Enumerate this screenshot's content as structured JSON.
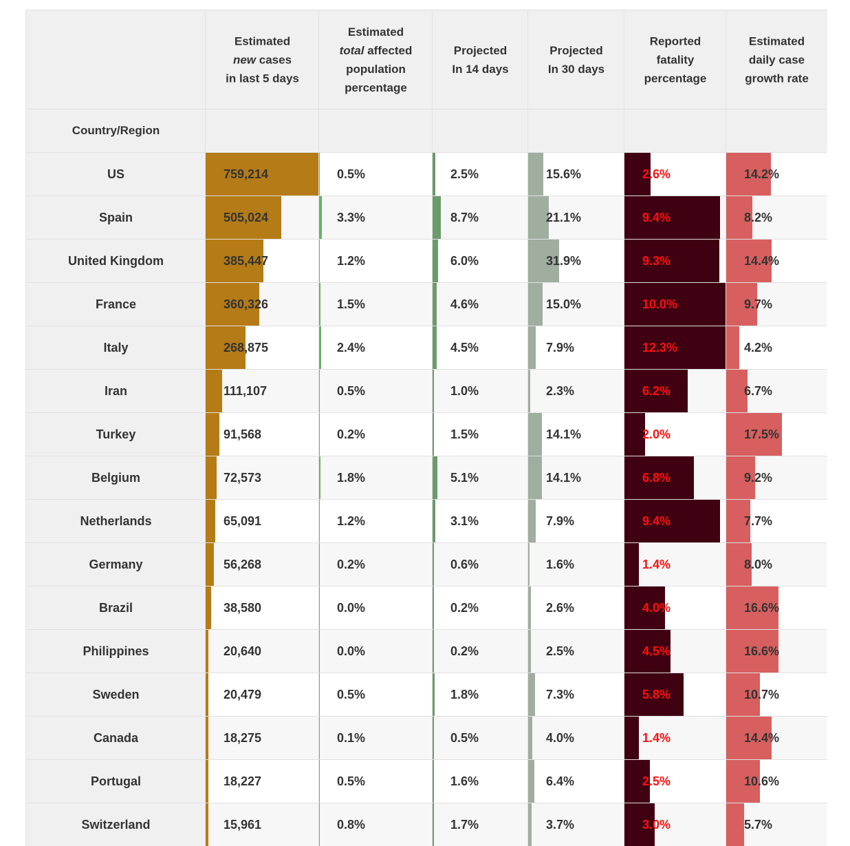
{
  "headers": {
    "country": "Country/Region",
    "col1": {
      "l1": "Estimated",
      "l2_em": "new",
      "l2_rest": " cases",
      "l3": "in last 5 days"
    },
    "col2": {
      "l1": "Estimated",
      "l2_em": "total",
      "l2_rest": " affected",
      "l3": "population",
      "l4": "percentage"
    },
    "col3": {
      "l1": "Projected",
      "l2": "In 14 days"
    },
    "col4": {
      "l1": "Projected",
      "l2": "In 30 days"
    },
    "col5": {
      "l1": "Reported",
      "l2": "fatality",
      "l3": "percentage"
    },
    "col6": {
      "l1": "Estimated",
      "l2": "daily case",
      "l3": "growth rate"
    }
  },
  "colors": {
    "new_cases_bar": "#b47b16",
    "total_affected_bar": "#66b266",
    "projected14_bar": "#6b9a6b",
    "projected30_bar": "#9fae9f",
    "fatality_bar": "#3f0012",
    "fatality_text": "#ff1010",
    "growth_bar": "#d75f5f"
  },
  "rows": [
    {
      "country": "US",
      "new_cases": "759,214",
      "total": "0.5%",
      "p14": "2.5%",
      "p30": "15.6%",
      "fatality": "2.6%",
      "growth": "14.2%"
    },
    {
      "country": "Spain",
      "new_cases": "505,024",
      "total": "3.3%",
      "p14": "8.7%",
      "p30": "21.1%",
      "fatality": "9.4%",
      "growth": "8.2%"
    },
    {
      "country": "United Kingdom",
      "new_cases": "385,447",
      "total": "1.2%",
      "p14": "6.0%",
      "p30": "31.9%",
      "fatality": "9.3%",
      "growth": "14.4%"
    },
    {
      "country": "France",
      "new_cases": "360,326",
      "total": "1.5%",
      "p14": "4.6%",
      "p30": "15.0%",
      "fatality": "10.0%",
      "growth": "9.7%"
    },
    {
      "country": "Italy",
      "new_cases": "268,875",
      "total": "2.4%",
      "p14": "4.5%",
      "p30": "7.9%",
      "fatality": "12.3%",
      "growth": "4.2%"
    },
    {
      "country": "Iran",
      "new_cases": "111,107",
      "total": "0.5%",
      "p14": "1.0%",
      "p30": "2.3%",
      "fatality": "6.2%",
      "growth": "6.7%"
    },
    {
      "country": "Turkey",
      "new_cases": "91,568",
      "total": "0.2%",
      "p14": "1.5%",
      "p30": "14.1%",
      "fatality": "2.0%",
      "growth": "17.5%"
    },
    {
      "country": "Belgium",
      "new_cases": "72,573",
      "total": "1.8%",
      "p14": "5.1%",
      "p30": "14.1%",
      "fatality": "6.8%",
      "growth": "9.2%"
    },
    {
      "country": "Netherlands",
      "new_cases": "65,091",
      "total": "1.2%",
      "p14": "3.1%",
      "p30": "7.9%",
      "fatality": "9.4%",
      "growth": "7.7%"
    },
    {
      "country": "Germany",
      "new_cases": "56,268",
      "total": "0.2%",
      "p14": "0.6%",
      "p30": "1.6%",
      "fatality": "1.4%",
      "growth": "8.0%"
    },
    {
      "country": "Brazil",
      "new_cases": "38,580",
      "total": "0.0%",
      "p14": "0.2%",
      "p30": "2.6%",
      "fatality": "4.0%",
      "growth": "16.6%"
    },
    {
      "country": "Philippines",
      "new_cases": "20,640",
      "total": "0.0%",
      "p14": "0.2%",
      "p30": "2.5%",
      "fatality": "4.5%",
      "growth": "16.6%"
    },
    {
      "country": "Sweden",
      "new_cases": "20,479",
      "total": "0.5%",
      "p14": "1.8%",
      "p30": "7.3%",
      "fatality": "5.8%",
      "growth": "10.7%"
    },
    {
      "country": "Canada",
      "new_cases": "18,275",
      "total": "0.1%",
      "p14": "0.5%",
      "p30": "4.0%",
      "fatality": "1.4%",
      "growth": "14.4%"
    },
    {
      "country": "Portugal",
      "new_cases": "18,227",
      "total": "0.5%",
      "p14": "1.6%",
      "p30": "6.4%",
      "fatality": "2.5%",
      "growth": "10.6%"
    },
    {
      "country": "Switzerland",
      "new_cases": "15,961",
      "total": "0.8%",
      "p14": "1.7%",
      "p30": "3.7%",
      "fatality": "3.0%",
      "growth": "5.7%"
    }
  ]
}
